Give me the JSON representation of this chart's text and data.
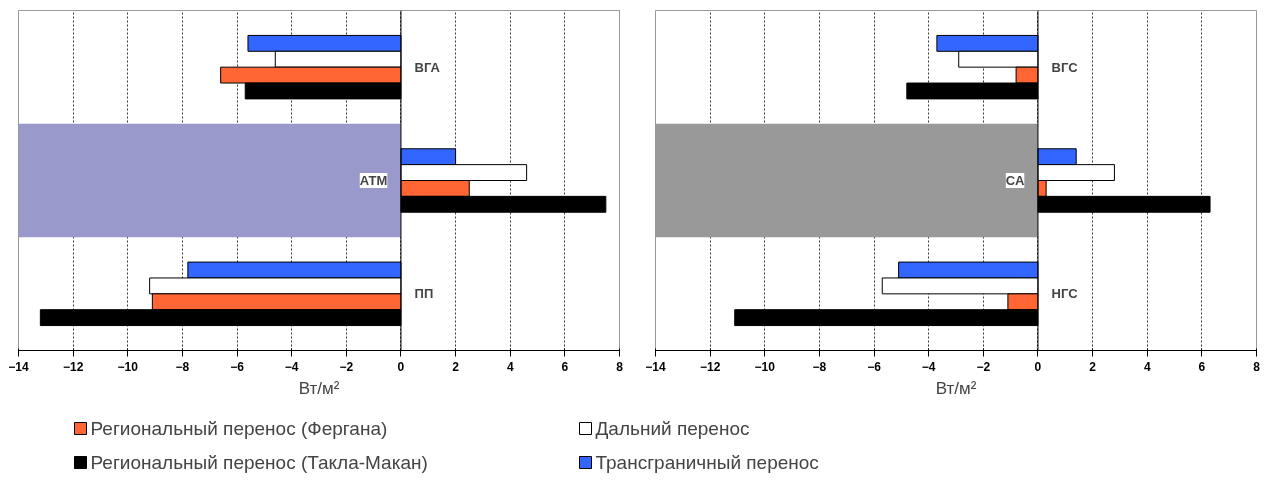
{
  "chart_data": [
    {
      "type": "bar",
      "orientation": "horizontal",
      "xlabel": "Вт/м²",
      "categories": [
        "ВГА",
        "АТМ",
        "ПП"
      ],
      "series": [
        {
          "name": "Трансграничный перенос",
          "color": "#3366ff",
          "values": [
            -5.6,
            2.0,
            -7.8
          ]
        },
        {
          "name": "Дальний перенос",
          "color": "#ffffff",
          "values": [
            -4.6,
            4.6,
            -9.2
          ]
        },
        {
          "name": "Региональный перенос (Фергана)",
          "color": "#ff6633",
          "values": [
            -6.6,
            2.5,
            -9.1
          ]
        },
        {
          "name": "Региональный перенос (Такла-Макан)",
          "color": "#000000",
          "values": [
            -5.7,
            7.5,
            -13.2
          ]
        }
      ],
      "bands": [
        {
          "axis": "y",
          "from": "АТМ",
          "to": "АТМ",
          "color": "#9999cc"
        }
      ],
      "xlim": [
        -14,
        8
      ],
      "xticks": [
        -14,
        -12,
        -10,
        -8,
        -6,
        -4,
        -2,
        0,
        2,
        4,
        6,
        8
      ],
      "grid": "x",
      "legend": "bottom",
      "tick_labels": "x"
    },
    {
      "type": "bar",
      "orientation": "horizontal",
      "xlabel": "Вт/м²",
      "categories": [
        "ВГС",
        "СА",
        "НГС"
      ],
      "series": [
        {
          "color": "#3366ff",
          "values": [
            -3.7,
            1.4,
            -5.1
          ]
        },
        {
          "color": "#ffffff",
          "values": [
            -2.9,
            2.8,
            -5.7
          ]
        },
        {
          "color": "#ff6633",
          "values": [
            -0.8,
            0.3,
            -1.1
          ]
        },
        {
          "color": "#000000",
          "values": [
            -4.8,
            6.3,
            -11.1
          ]
        }
      ],
      "bands": [
        {
          "axis": "y",
          "from": "СА",
          "to": "СА",
          "color": "#999999"
        }
      ],
      "xlim": [
        -14,
        8
      ],
      "xticks": [
        -14,
        -12,
        -10,
        -8,
        -6,
        -4,
        -2,
        0,
        2,
        4,
        6,
        8
      ],
      "grid": "x",
      "legend": false,
      "tick_labels": "x"
    }
  ]
}
